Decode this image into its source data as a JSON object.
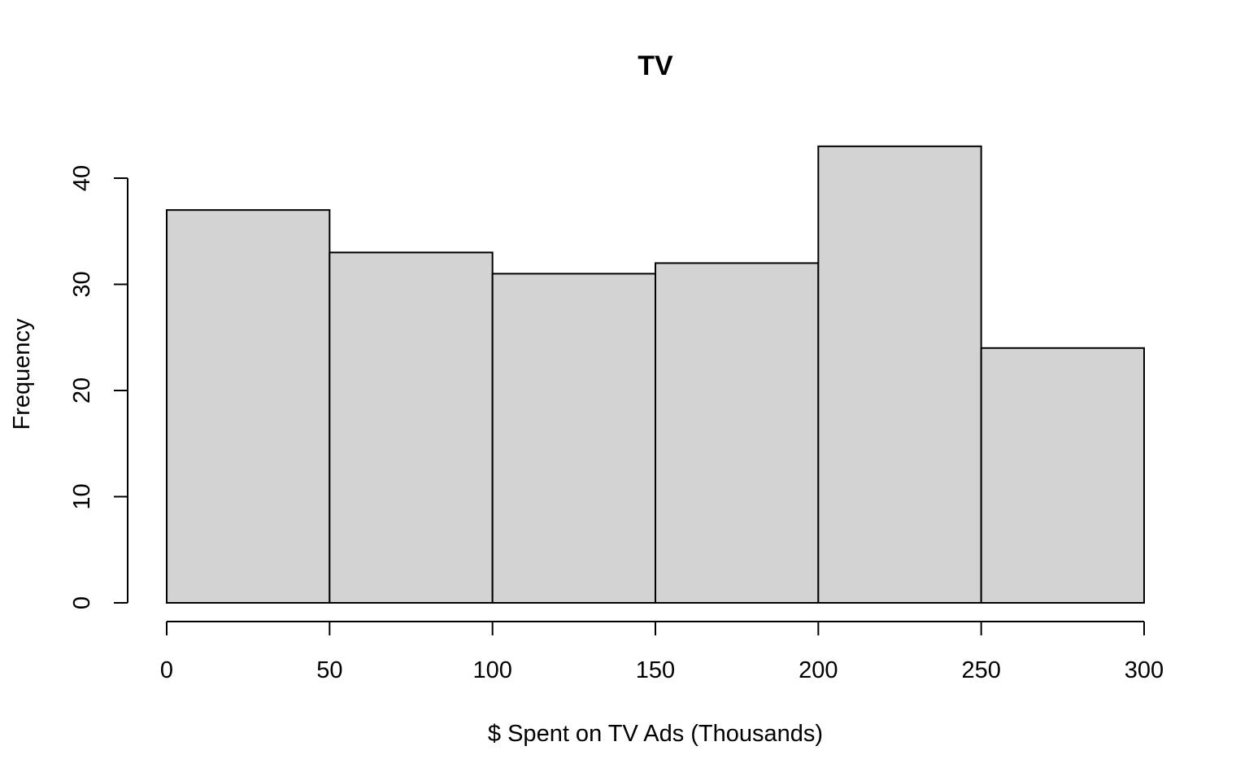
{
  "chart_data": {
    "type": "bar",
    "title": "TV",
    "xlabel": "$ Spent on TV Ads (Thousands)",
    "ylabel": "Frequency",
    "bins": [
      [
        0,
        50
      ],
      [
        50,
        100
      ],
      [
        100,
        150
      ],
      [
        150,
        200
      ],
      [
        200,
        250
      ],
      [
        250,
        300
      ]
    ],
    "values": [
      37,
      33,
      31,
      32,
      43,
      24
    ],
    "xlim": [
      0,
      300
    ],
    "ylim": [
      0,
      40
    ],
    "x_ticks": [
      "0",
      "50",
      "100",
      "150",
      "200",
      "250",
      "300"
    ],
    "y_ticks": [
      "0",
      "10",
      "20",
      "30",
      "40"
    ],
    "grid": false,
    "colors": {
      "bar_fill": "#d3d3d3",
      "bar_stroke": "#000000"
    }
  }
}
